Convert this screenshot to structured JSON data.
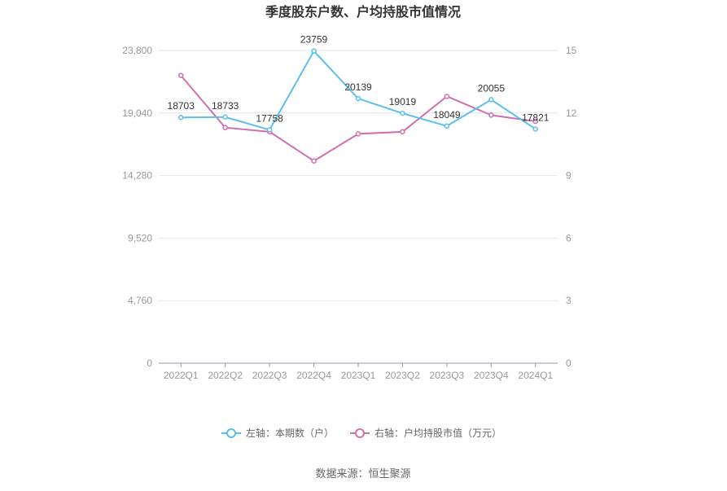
{
  "chart_data": {
    "type": "line",
    "title": "季度股东户数、户均持股市值情况",
    "categories": [
      "2022Q1",
      "2022Q2",
      "2022Q3",
      "2022Q4",
      "2023Q1",
      "2023Q2",
      "2023Q3",
      "2023Q4",
      "2024Q1"
    ],
    "left_axis": {
      "ticks": [
        "0",
        "4,760",
        "9,520",
        "14,280",
        "19,040",
        "23,800"
      ],
      "ylim": [
        0,
        23800
      ]
    },
    "right_axis": {
      "ticks": [
        "0",
        "3",
        "6",
        "9",
        "12",
        "15"
      ],
      "ylim": [
        0,
        15
      ]
    },
    "series": [
      {
        "name": "左轴：本期数（户）",
        "axis": "left",
        "color": "#5bc0eb",
        "values": [
          18703,
          18733,
          17758,
          23759,
          20139,
          19019,
          18049,
          20055,
          17821
        ],
        "labels": [
          "18703",
          "18733",
          "17758",
          "23759",
          "20139",
          "19019",
          "18049",
          "20055",
          "17821"
        ]
      },
      {
        "name": "右轴：户均持股市值（万元）",
        "axis": "right",
        "color": "#d16fae",
        "values": [
          13.8,
          11.3,
          11.1,
          9.7,
          11.0,
          11.1,
          12.8,
          11.9,
          11.6
        ]
      }
    ],
    "grid": true,
    "legend": "bottom-center",
    "source": "数据来源：恒生聚源"
  }
}
